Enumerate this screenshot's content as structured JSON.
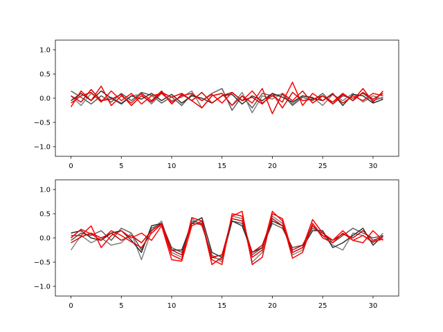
{
  "chart_data": [
    {
      "type": "line",
      "title": "",
      "xlabel": "",
      "ylabel": "",
      "xlim": [
        -1.55,
        32.55
      ],
      "ylim": [
        -1.2,
        1.2
      ],
      "x_ticks": [
        0,
        5,
        10,
        15,
        20,
        25,
        30
      ],
      "y_ticks": [
        -1.0,
        -0.5,
        0.0,
        0.5,
        1.0
      ],
      "x_tick_labels": [
        "0",
        "5",
        "10",
        "15",
        "20",
        "25",
        "30"
      ],
      "y_tick_labels": [
        "−1.0",
        "−0.5",
        "0.0",
        "0.5",
        "1.0"
      ],
      "grid": false,
      "series_colors": [
        "#5a5a5a",
        "#7f7f7f",
        "#2e2e2e",
        "#ee0000",
        "#ff0000",
        "#d40000"
      ],
      "series": [
        {
          "color": "#5a5a5a",
          "values": [
            0.15,
            0.02,
            -0.12,
            0.05,
            -0.08,
            0.1,
            -0.05,
            0.12,
            0.06,
            -0.1,
            0.03,
            -0.15,
            0.08,
            -0.05,
            0.1,
            0.2,
            -0.25,
            0.05,
            -0.2,
            0.1,
            0.05,
            0.08,
            -0.15,
            0.02,
            -0.05,
            0.1,
            -0.12,
            0.05,
            0.0,
            0.1,
            -0.05,
            0.02
          ]
        },
        {
          "color": "#7f7f7f",
          "values": [
            0.05,
            -0.15,
            0.1,
            -0.05,
            0.02,
            -0.1,
            0.05,
            0.08,
            -0.12,
            0.1,
            -0.05,
            0.02,
            0.15,
            -0.2,
            0.05,
            0.1,
            -0.15,
            0.12,
            -0.3,
            0.05,
            -0.02,
            0.1,
            -0.12,
            0.05,
            0.02,
            -0.15,
            0.08,
            -0.05,
            0.1,
            -0.08,
            0.05,
            -0.02
          ]
        },
        {
          "color": "#2e2e2e",
          "values": [
            -0.05,
            0.1,
            -0.05,
            0.15,
            0.0,
            -0.12,
            0.05,
            -0.02,
            0.1,
            -0.05,
            0.08,
            -0.1,
            0.05,
            0.0,
            -0.1,
            0.05,
            0.08,
            -0.12,
            0.05,
            -0.05,
            0.1,
            0.02,
            -0.08,
            0.05,
            0.0,
            -0.05,
            0.1,
            -0.15,
            0.08,
            0.05,
            -0.1,
            -0.02
          ]
        },
        {
          "color": "#ee0000",
          "values": [
            -0.18,
            0.15,
            -0.05,
            0.25,
            -0.15,
            0.05,
            -0.1,
            0.1,
            -0.05,
            0.15,
            -0.12,
            0.08,
            -0.05,
            -0.2,
            0.05,
            0.1,
            -0.15,
            0.05,
            -0.1,
            0.2,
            -0.32,
            0.1,
            -0.05,
            0.15,
            -0.1,
            0.05,
            -0.12,
            0.08,
            -0.05,
            0.2,
            -0.08,
            0.15
          ]
        },
        {
          "color": "#ff0000",
          "values": [
            -0.1,
            0.05,
            0.12,
            -0.08,
            0.15,
            -0.05,
            0.1,
            -0.12,
            0.05,
            0.1,
            -0.08,
            0.05,
            0.1,
            -0.05,
            0.08,
            -0.1,
            0.12,
            -0.05,
            0.15,
            -0.1,
            0.05,
            -0.08,
            0.33,
            -0.15,
            0.1,
            -0.05,
            0.08,
            -0.1,
            0.05,
            -0.05,
            0.1,
            0.05
          ]
        },
        {
          "color": "#d40000",
          "values": [
            0.05,
            -0.08,
            0.18,
            -0.05,
            -0.02,
            0.08,
            -0.15,
            0.05,
            -0.08,
            0.12,
            0.02,
            0.1,
            -0.05,
            0.12,
            -0.1,
            0.05,
            0.12,
            -0.05,
            0.02,
            -0.12,
            0.1,
            -0.2,
            0.12,
            -0.05,
            -0.02,
            0.05,
            -0.08,
            0.1,
            -0.05,
            0.12,
            -0.02,
            0.1
          ]
        }
      ]
    },
    {
      "type": "line",
      "title": "",
      "xlabel": "",
      "ylabel": "",
      "xlim": [
        -1.55,
        32.55
      ],
      "ylim": [
        -1.2,
        1.2
      ],
      "x_ticks": [
        0,
        5,
        10,
        15,
        20,
        25,
        30
      ],
      "y_ticks": [
        -1.0,
        -0.5,
        0.0,
        0.5,
        1.0
      ],
      "x_tick_labels": [
        "0",
        "5",
        "10",
        "15",
        "20",
        "25",
        "30"
      ],
      "y_tick_labels": [
        "−1.0",
        "−0.5",
        "0.0",
        "0.5",
        "1.0"
      ],
      "grid": false,
      "series_colors": [
        "#5a5a5a",
        "#7f7f7f",
        "#2e2e2e",
        "#ee0000",
        "#ff0000",
        "#d40000"
      ],
      "series": [
        {
          "color": "#5a5a5a",
          "values": [
            -0.05,
            0.1,
            0.05,
            0.15,
            -0.05,
            0.2,
            0.1,
            -0.25,
            0.2,
            0.3,
            -0.2,
            -0.3,
            0.35,
            0.3,
            -0.4,
            -0.45,
            0.35,
            0.3,
            -0.35,
            -0.2,
            0.3,
            0.2,
            -0.2,
            -0.15,
            0.2,
            0.1,
            -0.1,
            0.05,
            0.2,
            0.1,
            0.0,
            0.05
          ]
        },
        {
          "color": "#7f7f7f",
          "values": [
            -0.25,
            0.05,
            -0.1,
            0.0,
            -0.15,
            -0.1,
            0.1,
            -0.45,
            0.15,
            0.35,
            -0.3,
            -0.4,
            0.4,
            0.25,
            -0.35,
            -0.5,
            0.45,
            0.4,
            -0.5,
            -0.3,
            0.45,
            0.3,
            -0.35,
            -0.25,
            0.3,
            0.05,
            -0.15,
            -0.25,
            0.1,
            0.05,
            -0.1,
            0.1
          ]
        },
        {
          "color": "#2e2e2e",
          "values": [
            0.1,
            0.15,
            0.0,
            -0.05,
            0.1,
            0.15,
            -0.05,
            -0.3,
            0.25,
            0.3,
            -0.25,
            -0.25,
            0.3,
            0.42,
            -0.3,
            -0.4,
            0.35,
            0.25,
            -0.3,
            -0.2,
            0.35,
            0.25,
            -0.3,
            -0.2,
            0.15,
            0.15,
            -0.2,
            -0.1,
            0.05,
            0.2,
            -0.15,
            0.05
          ]
        },
        {
          "color": "#ee0000",
          "values": [
            0.0,
            0.18,
            0.08,
            -0.05,
            0.15,
            0.05,
            -0.08,
            -0.2,
            0.1,
            0.28,
            -0.35,
            -0.45,
            0.42,
            0.35,
            -0.55,
            -0.4,
            0.45,
            0.55,
            -0.55,
            -0.4,
            0.5,
            0.4,
            -0.3,
            -0.2,
            0.38,
            0.1,
            -0.05,
            0.15,
            -0.05,
            0.05,
            -0.08,
            -0.02
          ]
        },
        {
          "color": "#ff0000",
          "values": [
            0.05,
            0.05,
            0.25,
            -0.2,
            0.05,
            0.15,
            0.0,
            0.1,
            -0.05,
            0.25,
            -0.45,
            -0.48,
            0.25,
            0.35,
            -0.45,
            -0.55,
            0.5,
            0.45,
            -0.4,
            -0.25,
            0.55,
            0.35,
            -0.42,
            -0.3,
            0.3,
            0.0,
            -0.1,
            0.1,
            -0.05,
            -0.1,
            0.15,
            -0.05
          ]
        },
        {
          "color": "#d40000",
          "values": [
            -0.1,
            0.02,
            0.1,
            0.0,
            0.1,
            -0.05,
            0.05,
            -0.1,
            0.15,
            0.3,
            -0.25,
            -0.35,
            0.3,
            0.28,
            -0.4,
            -0.35,
            0.4,
            0.35,
            -0.3,
            -0.15,
            0.4,
            0.25,
            -0.25,
            -0.15,
            0.25,
            0.05,
            -0.05,
            0.08,
            0.0,
            0.15,
            -0.05,
            0.02
          ]
        }
      ]
    }
  ]
}
